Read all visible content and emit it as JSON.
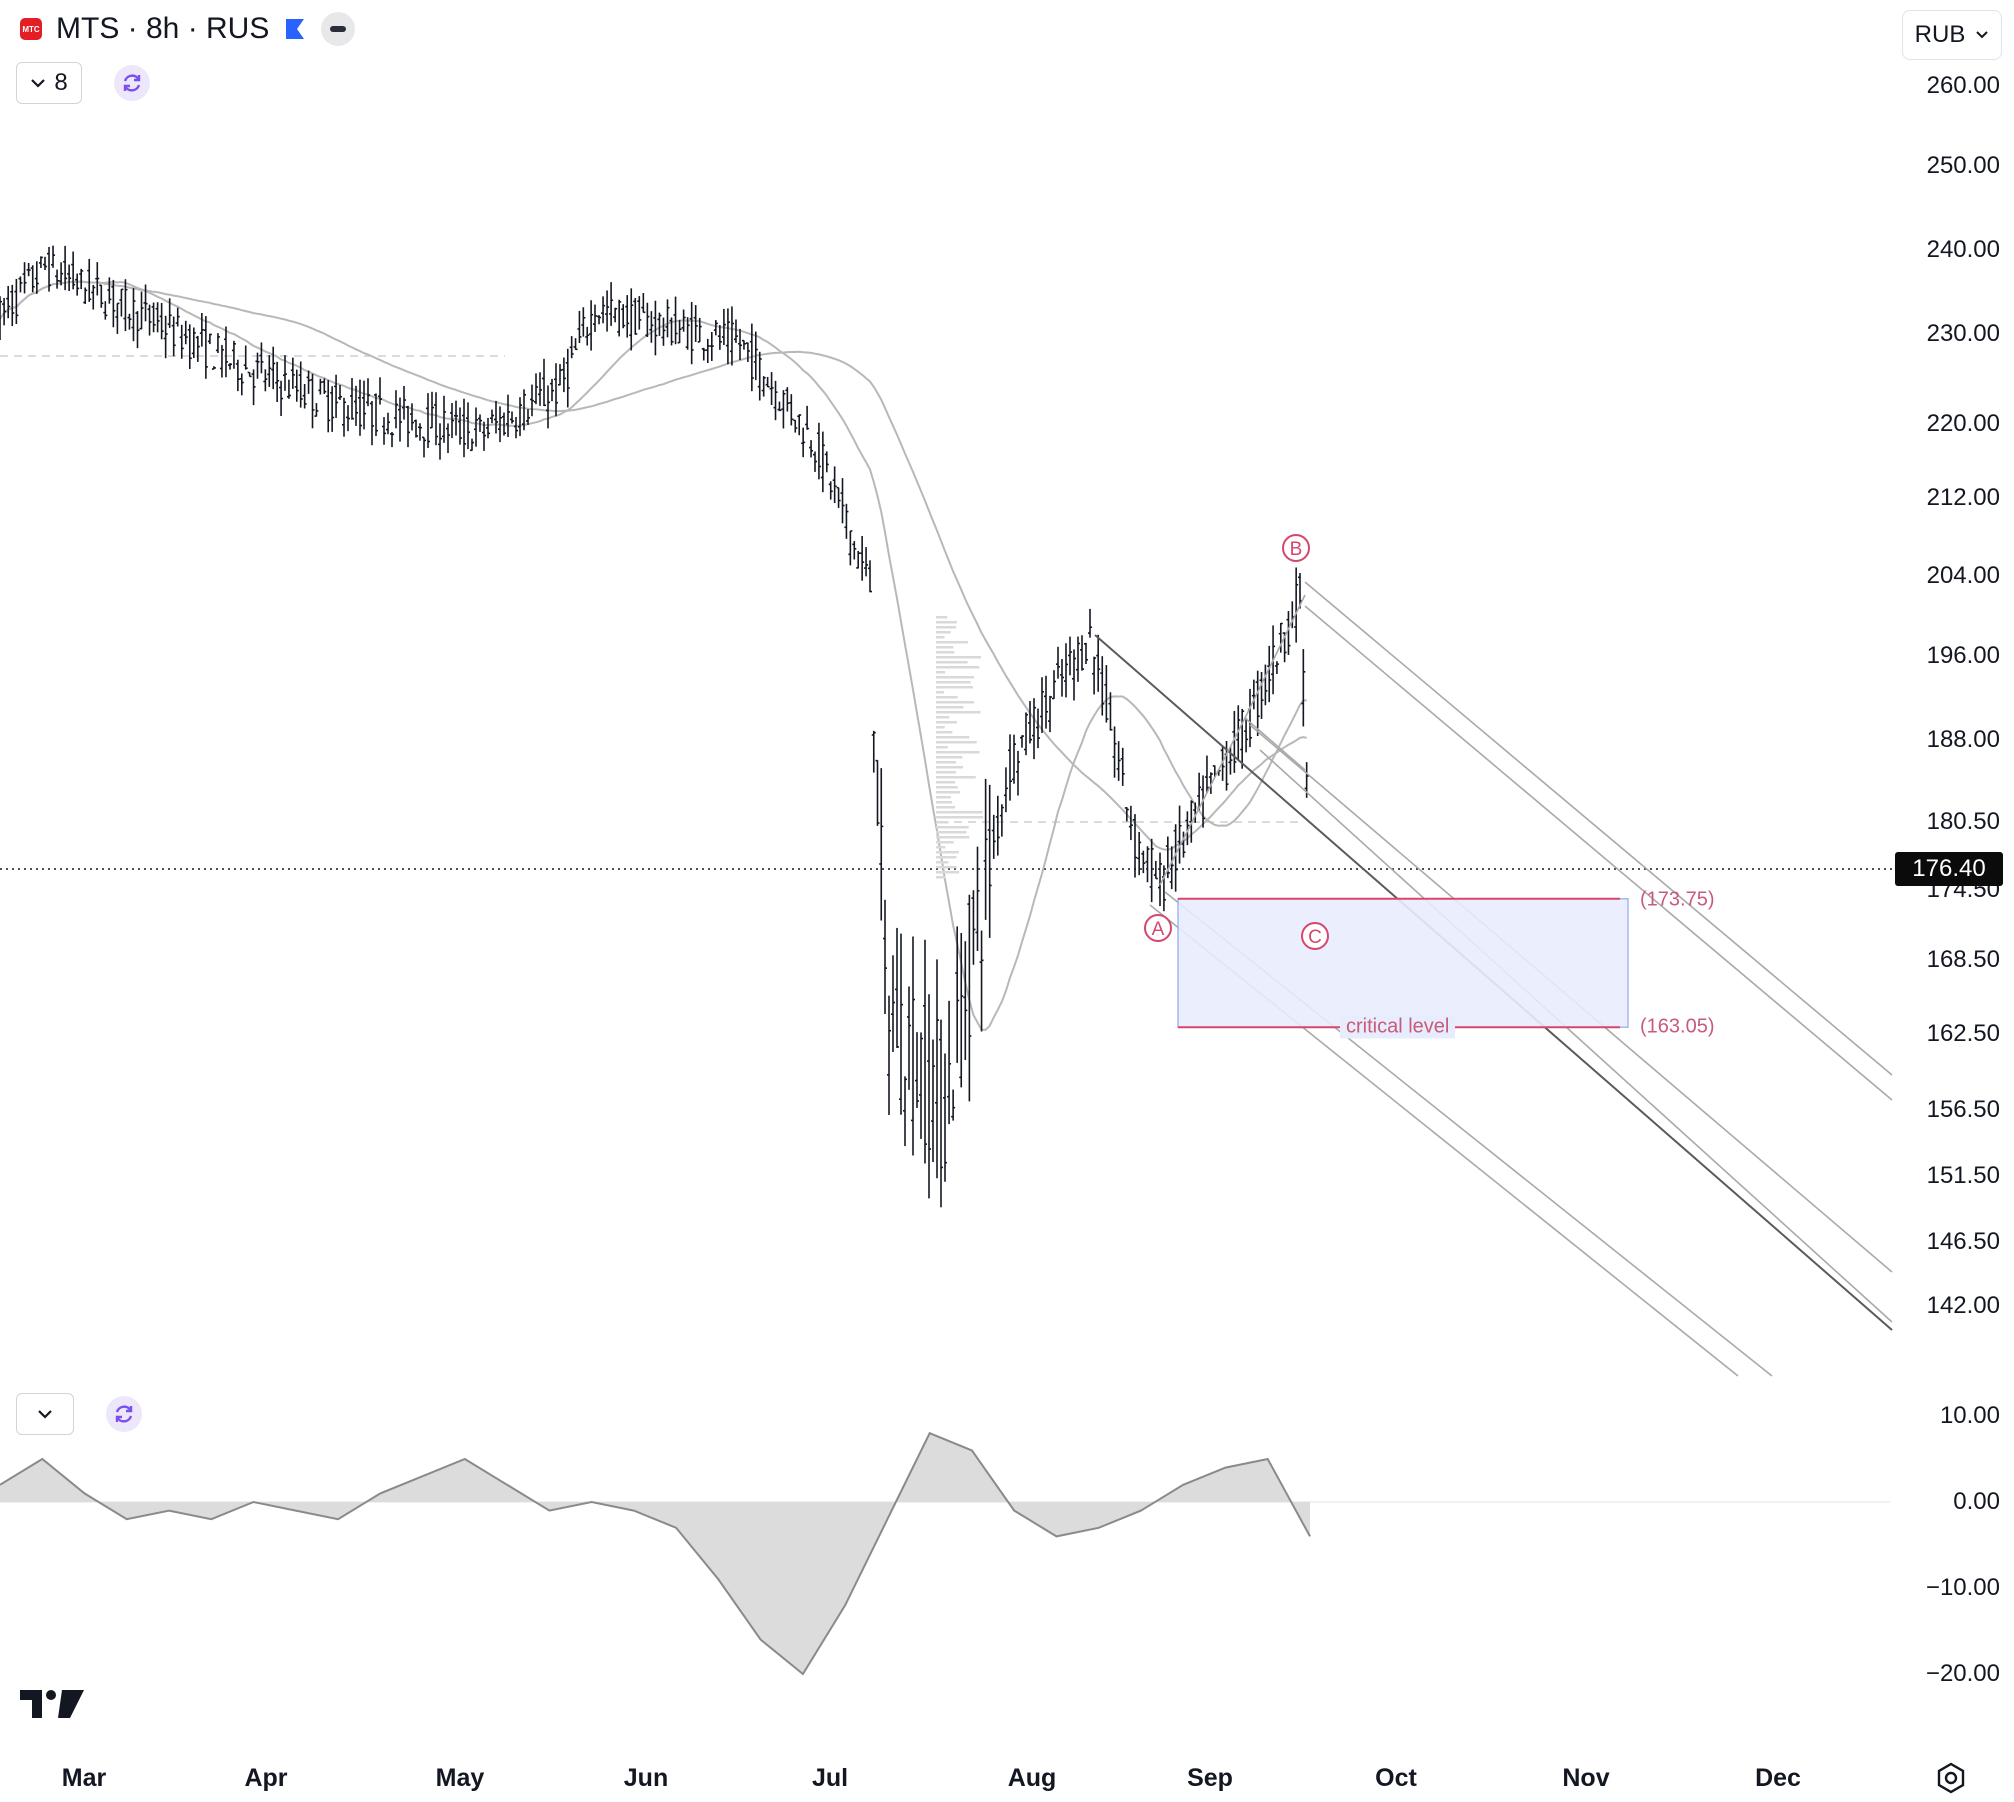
{
  "header": {
    "title": "MTS · 8h · RUS",
    "logo_text": "МТС",
    "indicator_count": "8",
    "currency": "RUB"
  },
  "price_axis": [
    "260.00",
    "250.00",
    "240.00",
    "230.00",
    "220.00",
    "212.00",
    "204.00",
    "196.00",
    "188.00",
    "180.50",
    "174.50",
    "168.50",
    "162.50",
    "156.50",
    "151.50",
    "146.50",
    "142.00"
  ],
  "last_price": "176.40",
  "osc_axis": [
    "10.00",
    "0.00",
    "−10.00",
    "−20.00"
  ],
  "time_axis": [
    "Mar",
    "Apr",
    "May",
    "Jun",
    "Jul",
    "Aug",
    "Sep",
    "Oct",
    "Nov",
    "Dec"
  ],
  "annotations": {
    "wave_a": "A",
    "wave_b": "B",
    "wave_c": "C",
    "upper_level": "(173.75)",
    "lower_level": "(163.05)",
    "critical_label": "critical level"
  },
  "colors": {
    "candle": "#131722",
    "ma": "#b8b8b8",
    "channel": "#a9a9a9",
    "zone_fill": "#e8edfd",
    "zone_border": "#9fb0f0",
    "annotation": "#d6476b",
    "osc_fill": "#dcdcdc",
    "osc_line": "#8a8a8a"
  },
  "chart_data": {
    "type": "candlestick",
    "symbol": "MTS",
    "interval": "8h",
    "exchange": "RUS",
    "currency": "RUB",
    "price_range": [
      140,
      262
    ],
    "last_price": 176.4,
    "price_path": [
      {
        "month": "Mar",
        "price": 232
      },
      {
        "month": "Mar",
        "price": 238
      },
      {
        "month": "Apr",
        "price": 227
      },
      {
        "month": "Apr",
        "price": 222
      },
      {
        "month": "May",
        "price": 219
      },
      {
        "month": "May",
        "price": 224
      },
      {
        "month": "Jun",
        "price": 233
      },
      {
        "month": "Jun",
        "price": 229
      },
      {
        "month": "Jul",
        "price": 218
      },
      {
        "month": "Jul",
        "price": 203
      },
      {
        "month": "Jul",
        "price": 165
      },
      {
        "month": "Jul",
        "price": 157
      },
      {
        "month": "Aug",
        "price": 186
      },
      {
        "month": "Aug",
        "price": 198
      },
      {
        "month": "Aug",
        "price": 179
      },
      {
        "month": "Sep",
        "price": 175
      },
      {
        "month": "Sep",
        "price": 190
      },
      {
        "month": "Sep",
        "price": 202
      },
      {
        "month": "Sep",
        "price": 176.4
      }
    ],
    "zone": {
      "upper": 173.75,
      "lower": 163.05,
      "label": "critical level"
    },
    "waves": [
      {
        "label": "A",
        "price": 174.5
      },
      {
        "label": "B",
        "price": 202
      },
      {
        "label": "C",
        "price": 176.4
      }
    ],
    "oscillator_range": [
      -22,
      12
    ],
    "oscillator_path": [
      2,
      5,
      1,
      -2,
      -1,
      -2,
      0,
      -1,
      -2,
      1,
      3,
      5,
      2,
      -1,
      0,
      -1,
      -3,
      -9,
      -16,
      -20,
      -12,
      -2,
      8,
      6,
      -1,
      -4,
      -3,
      -1,
      2,
      4,
      5,
      -4
    ]
  }
}
